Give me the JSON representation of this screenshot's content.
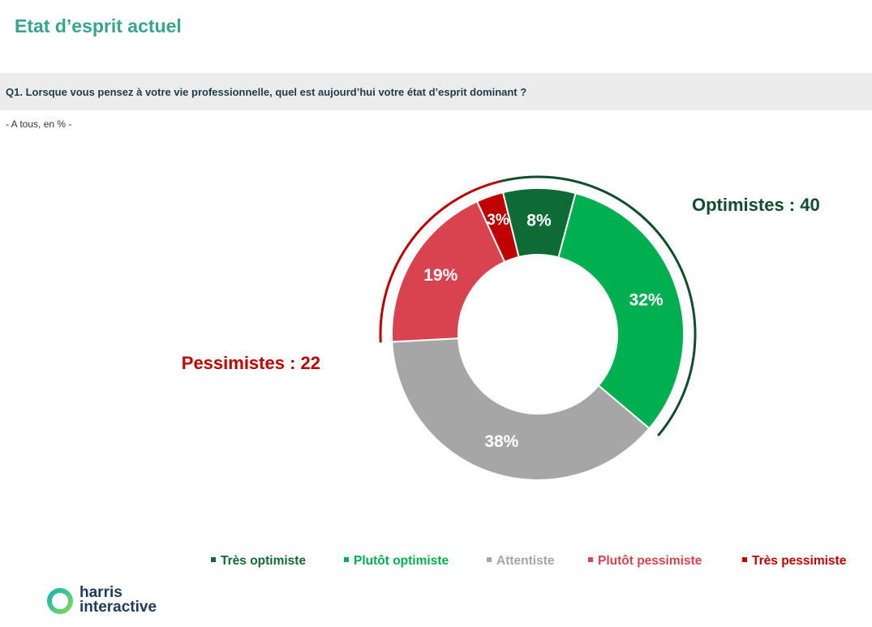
{
  "header": {
    "title": "Etat d’esprit actuel"
  },
  "question": {
    "text": "Q1. Lorsque vous pensez à votre vie professionnelle, quel est aujourd’hui votre état d’esprit dominant ?",
    "base": "- A tous, en % -"
  },
  "chart_data": {
    "type": "pie",
    "variant": "donut",
    "categories": [
      "Très optimiste",
      "Plutôt optimiste",
      "Attentiste",
      "Plutôt pessimiste",
      "Très pessimiste"
    ],
    "values": [
      8,
      32,
      38,
      19,
      3
    ],
    "value_labels": [
      "8%",
      "32%",
      "38%",
      "19%",
      "3%"
    ],
    "colors": [
      "#0f6b35",
      "#00b050",
      "#a6a6a6",
      "#d9434f",
      "#c00000"
    ],
    "legend_position": "bottom",
    "groups": [
      {
        "label": "Optimistes : 40",
        "members": [
          "Très optimiste",
          "Plutôt optimiste"
        ],
        "color": "#0f4d2c"
      },
      {
        "label": "Pessimistes : 22",
        "members": [
          "Plutôt pessimiste",
          "Très pessimiste"
        ],
        "color": "#c00000"
      }
    ]
  },
  "legend": {
    "items": [
      {
        "label": "Très optimiste",
        "color": "#0f6b35"
      },
      {
        "label": "Plutôt optimiste",
        "color": "#00b050"
      },
      {
        "label": "Attentiste",
        "color": "#a6a6a6"
      },
      {
        "label": "Plutôt pessimiste",
        "color": "#d9434f"
      },
      {
        "label": "Très pessimiste",
        "color": "#c00000"
      }
    ]
  },
  "logo": {
    "line1": "harris",
    "line2": "interactive",
    "text_color": "#1d3b5a",
    "ring_colors": [
      "#17b5b0",
      "#7dd95a"
    ]
  }
}
